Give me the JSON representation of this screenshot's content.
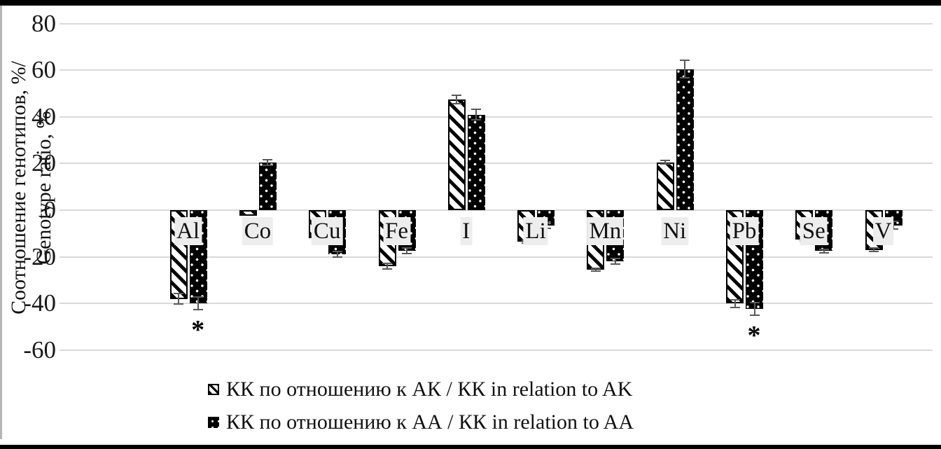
{
  "chart_data": {
    "type": "bar",
    "title": "",
    "categories": [
      "Al",
      "Co",
      "Cu",
      "Fe",
      "I",
      "Li",
      "Mn",
      "Ni",
      "Pb",
      "Se",
      "V"
    ],
    "series": [
      {
        "name": "КК по отношению к АК / КК in relation to AK",
        "pattern": "hatched",
        "values": [
          -38,
          -2.5,
          -12,
          -24,
          47.5,
          -13.5,
          -25.5,
          20.5,
          -40,
          -12.5,
          -17
        ],
        "errors": [
          2.5,
          0.5,
          1,
          1.5,
          2,
          1,
          1,
          1,
          2,
          1,
          1
        ]
      },
      {
        "name": "КК по отношению к АА / КК in relation to AA",
        "pattern": "dotted",
        "values": [
          -40,
          20.5,
          -19,
          -17.5,
          41,
          -6.5,
          -22,
          60.5,
          -42.5,
          -17.5,
          -6.5
        ],
        "errors": [
          3,
          1.5,
          1.5,
          1.5,
          2.5,
          1.5,
          1.5,
          4,
          3,
          1,
          2
        ]
      }
    ],
    "significance_marks": [
      {
        "category": "Al",
        "series": 1,
        "symbol": "*"
      },
      {
        "category": "Pb",
        "series": 1,
        "symbol": "*"
      }
    ],
    "ylabel_line1": "Соотношение генотипов, %/",
    "ylabel_line2": "Genotype ratio, %",
    "xlabel": "",
    "yticks": [
      80,
      60,
      40,
      20,
      0,
      -20,
      -40,
      -60
    ],
    "ylim": [
      -60,
      80
    ],
    "grid": true,
    "legend_position": "bottom"
  },
  "colors": {
    "bar": "#000000",
    "grid": "#d9d9d9",
    "error_bar": "#595959",
    "category_label_bg": "#ededed",
    "frame": "#000000"
  }
}
